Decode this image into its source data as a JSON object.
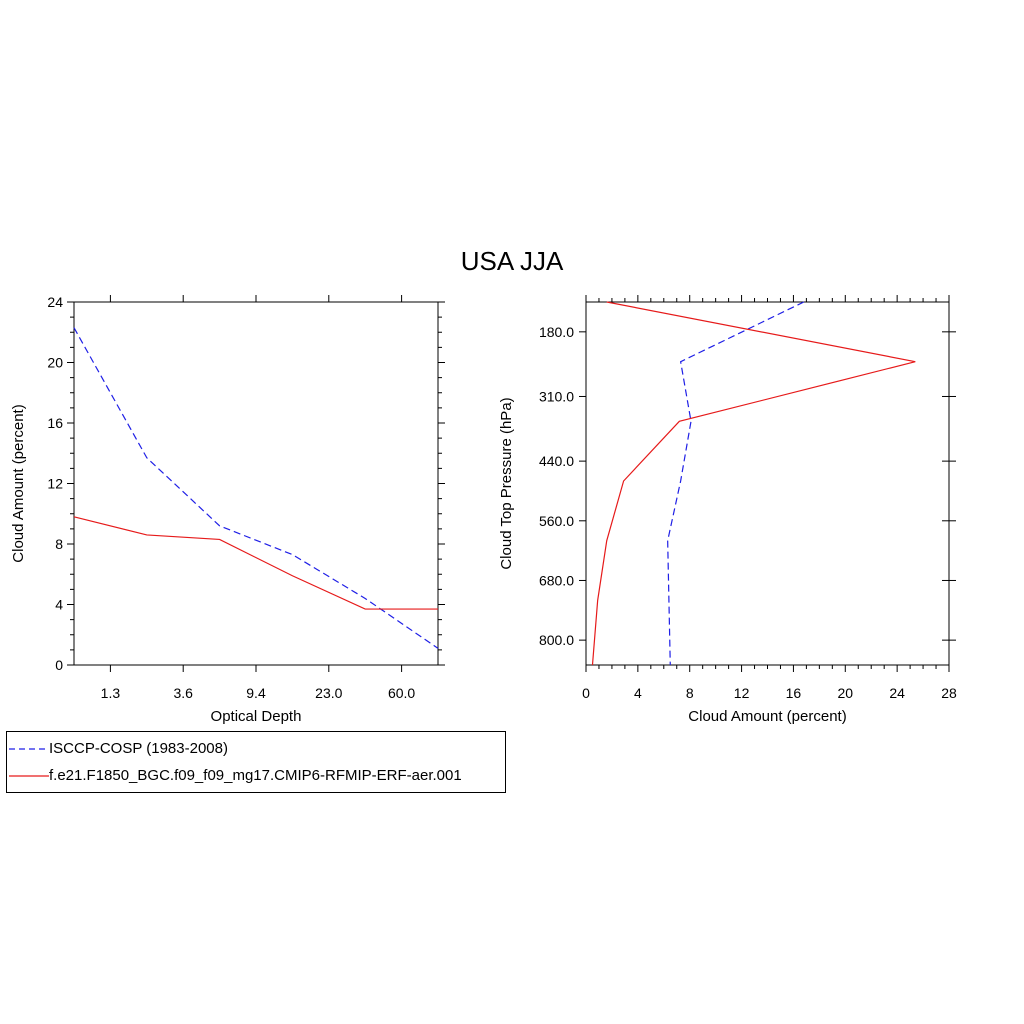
{
  "title": "USA JJA",
  "colors": {
    "obs": "#1f1fe6",
    "model": "#e61a1a",
    "axis": "#000000"
  },
  "legend": {
    "items": [
      {
        "label": "ISCCP-COSP (1983-2008)",
        "color": "#1f1fe6",
        "dashed": true
      },
      {
        "label": "f.e21.F1850_BGC.f09_f09_mg17.CMIP6-RFMIP-ERF-aer.001",
        "color": "#e61a1a",
        "dashed": false
      }
    ]
  },
  "chart_data": [
    {
      "type": "line",
      "xlabel": "Optical Depth",
      "ylabel": "Cloud Amount (percent)",
      "x_tick_labels": [
        "1.3",
        "3.6",
        "9.4",
        "23.0",
        "60.0"
      ],
      "x_tick_index": [
        0.5,
        1.5,
        2.5,
        3.5,
        4.5
      ],
      "xlim_index": [
        0,
        5
      ],
      "ylim": [
        0,
        24
      ],
      "y_ticks": [
        0,
        4,
        8,
        12,
        16,
        20,
        24
      ],
      "series": [
        {
          "name": "ISCCP-COSP (1983-2008)",
          "style": "dashed",
          "color": "#1f1fe6",
          "x_index": [
            0,
            1,
            2,
            3,
            4,
            5
          ],
          "values": [
            22.3,
            13.7,
            9.2,
            7.3,
            4.4,
            1.1
          ]
        },
        {
          "name": "f.e21.F1850_BGC.f09_f09_mg17.CMIP6-RFMIP-ERF-aer.001",
          "style": "solid",
          "color": "#e61a1a",
          "x_index": [
            0,
            1,
            2,
            3,
            4,
            5
          ],
          "values": [
            9.8,
            8.6,
            8.3,
            5.9,
            3.7,
            3.7
          ]
        }
      ]
    },
    {
      "type": "line",
      "xlabel": "Cloud Amount (percent)",
      "ylabel": "Cloud Top Pressure (hPa)",
      "xlim": [
        0,
        28
      ],
      "x_ticks": [
        0,
        4,
        8,
        12,
        16,
        20,
        24,
        28
      ],
      "ylim": [
        120,
        850
      ],
      "y_inverted": true,
      "y_ticks": [
        180,
        310,
        440,
        560,
        680,
        800
      ],
      "y_tick_labels": [
        "180.0",
        "310.0",
        "440.0",
        "560.0",
        "680.0",
        "800.0"
      ],
      "series": [
        {
          "name": "ISCCP-COSP (1983-2008)",
          "style": "dashed",
          "color": "#1f1fe6",
          "x": [
            16.8,
            7.3,
            8.1,
            7.3,
            6.3,
            6.5
          ],
          "pressure": [
            120,
            240,
            360,
            480,
            600,
            850
          ]
        },
        {
          "name": "f.e21.F1850_BGC.f09_f09_mg17.CMIP6-RFMIP-ERF-aer.001",
          "style": "solid",
          "color": "#e61a1a",
          "x": [
            1.6,
            25.4,
            7.2,
            2.9,
            1.6,
            0.9,
            0.5
          ],
          "pressure": [
            120,
            240,
            360,
            480,
            600,
            720,
            850
          ]
        }
      ]
    }
  ]
}
